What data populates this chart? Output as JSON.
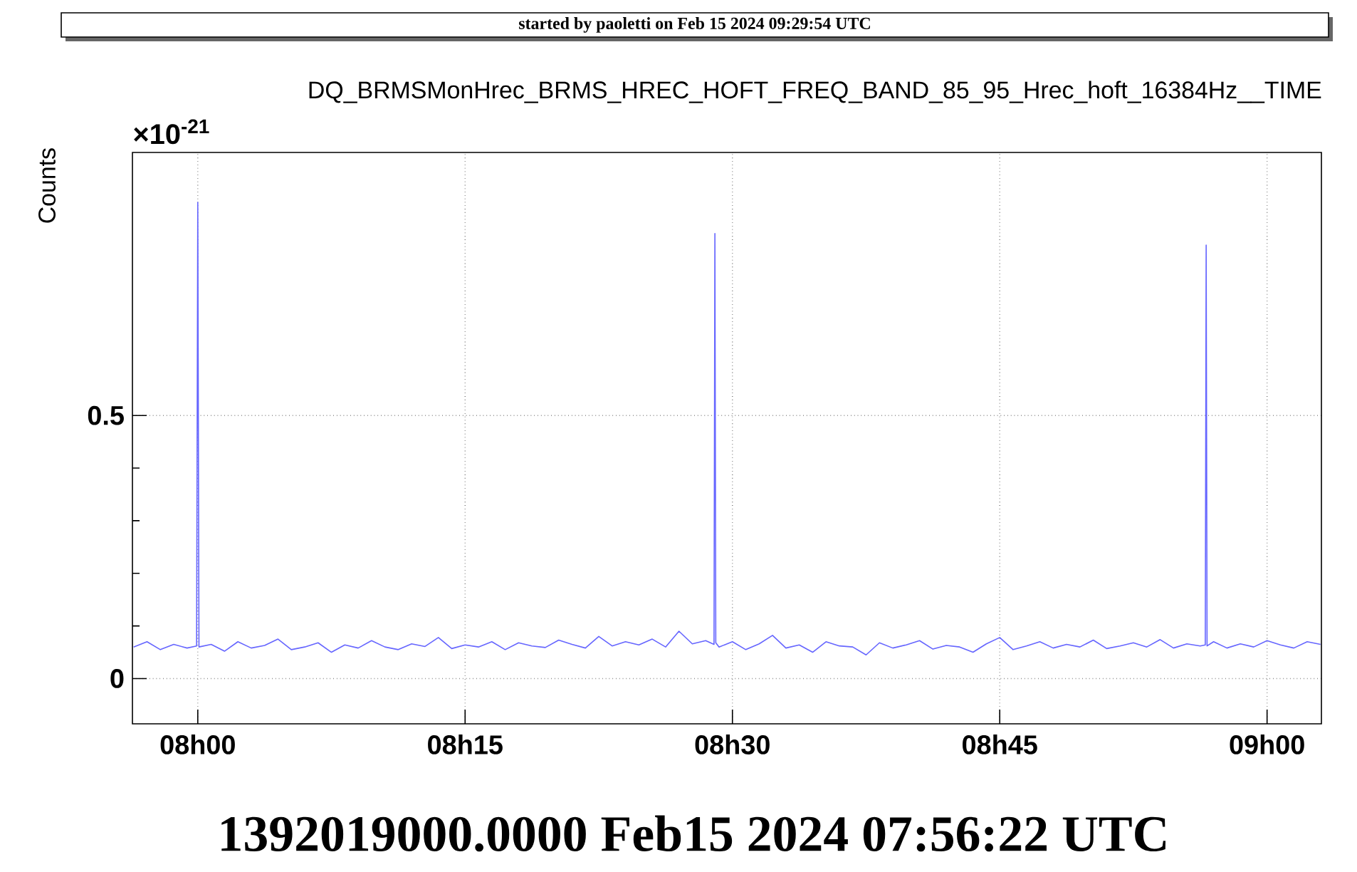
{
  "chart_data": {
    "type": "line",
    "title": "DQ_BRMSMonHrec_BRMS_HREC_HOFT_FREQ_BAND_85_95_Hrec_hoft_16384Hz__TIME",
    "ylabel": "Counts",
    "annotations": [
      "started by paoletti on Feb 15 2024 09:29:54 UTC",
      "×10$^{-21}$",
      "1392019000.0000 Feb15 2024 07:56:22 UTC"
    ],
    "xlim": [
      "2024-02-15T07:56:20",
      "2024-02-15T09:03:03"
    ],
    "ylim": [
      -0.086,
      1.0
    ],
    "xticks": [
      {
        "value": "2024-02-15T08:00",
        "label": "08h00"
      },
      {
        "value": "2024-02-15T08:15",
        "label": "08h15"
      },
      {
        "value": "2024-02-15T08:30",
        "label": "08h30"
      },
      {
        "value": "2024-02-15T08:45",
        "label": "08h45"
      },
      {
        "value": "2024-02-15T09:00",
        "label": "09h00"
      }
    ],
    "yticks": [
      0,
      0.5
    ],
    "grid": true,
    "x": [
      "2024-02-15T07:56:24",
      "2024-02-15T07:57:09",
      "2024-02-15T07:57:54",
      "2024-02-15T07:58:39",
      "2024-02-15T07:59:24",
      "2024-02-15T07:59:56",
      "2024-02-15T08:00:00",
      "2024-02-15T08:00:04",
      "2024-02-15T08:00:45",
      "2024-02-15T08:01:30",
      "2024-02-15T08:02:15",
      "2024-02-15T08:03:00",
      "2024-02-15T08:03:45",
      "2024-02-15T08:04:30",
      "2024-02-15T08:05:15",
      "2024-02-15T08:06:00",
      "2024-02-15T08:06:45",
      "2024-02-15T08:07:30",
      "2024-02-15T08:08:15",
      "2024-02-15T08:09:00",
      "2024-02-15T08:09:45",
      "2024-02-15T08:10:30",
      "2024-02-15T08:11:15",
      "2024-02-15T08:12:00",
      "2024-02-15T08:12:45",
      "2024-02-15T08:13:30",
      "2024-02-15T08:14:15",
      "2024-02-15T08:15:00",
      "2024-02-15T08:15:45",
      "2024-02-15T08:16:30",
      "2024-02-15T08:17:15",
      "2024-02-15T08:18:00",
      "2024-02-15T08:18:45",
      "2024-02-15T08:19:30",
      "2024-02-15T08:20:15",
      "2024-02-15T08:21:00",
      "2024-02-15T08:21:45",
      "2024-02-15T08:22:30",
      "2024-02-15T08:23:15",
      "2024-02-15T08:24:00",
      "2024-02-15T08:24:45",
      "2024-02-15T08:25:30",
      "2024-02-15T08:26:15",
      "2024-02-15T08:27:00",
      "2024-02-15T08:27:45",
      "2024-02-15T08:28:30",
      "2024-02-15T08:28:58",
      "2024-02-15T08:29:01",
      "2024-02-15T08:29:04",
      "2024-02-15T08:29:15",
      "2024-02-15T08:30:00",
      "2024-02-15T08:30:45",
      "2024-02-15T08:31:30",
      "2024-02-15T08:32:15",
      "2024-02-15T08:33:00",
      "2024-02-15T08:33:45",
      "2024-02-15T08:34:30",
      "2024-02-15T08:35:15",
      "2024-02-15T08:36:00",
      "2024-02-15T08:36:45",
      "2024-02-15T08:37:30",
      "2024-02-15T08:38:15",
      "2024-02-15T08:39:00",
      "2024-02-15T08:39:45",
      "2024-02-15T08:40:30",
      "2024-02-15T08:41:15",
      "2024-02-15T08:42:00",
      "2024-02-15T08:42:45",
      "2024-02-15T08:43:30",
      "2024-02-15T08:44:15",
      "2024-02-15T08:45:00",
      "2024-02-15T08:45:45",
      "2024-02-15T08:46:30",
      "2024-02-15T08:47:15",
      "2024-02-15T08:48:00",
      "2024-02-15T08:48:45",
      "2024-02-15T08:49:30",
      "2024-02-15T08:50:15",
      "2024-02-15T08:51:00",
      "2024-02-15T08:51:45",
      "2024-02-15T08:52:30",
      "2024-02-15T08:53:15",
      "2024-02-15T08:54:00",
      "2024-02-15T08:54:45",
      "2024-02-15T08:55:30",
      "2024-02-15T08:56:15",
      "2024-02-15T08:56:32",
      "2024-02-15T08:56:35",
      "2024-02-15T08:56:38",
      "2024-02-15T08:57:00",
      "2024-02-15T08:57:45",
      "2024-02-15T08:58:30",
      "2024-02-15T08:59:15",
      "2024-02-15T09:00:00",
      "2024-02-15T09:00:45",
      "2024-02-15T09:01:30",
      "2024-02-15T09:02:15",
      "2024-02-15T09:03:00"
    ],
    "series": [
      {
        "color": "#6666ff",
        "values": [
          0.06,
          0.07,
          0.055,
          0.065,
          0.058,
          0.062,
          0.905,
          0.06,
          0.065,
          0.052,
          0.07,
          0.058,
          0.063,
          0.075,
          0.055,
          0.06,
          0.068,
          0.05,
          0.064,
          0.058,
          0.072,
          0.06,
          0.055,
          0.066,
          0.061,
          0.078,
          0.057,
          0.064,
          0.06,
          0.07,
          0.055,
          0.068,
          0.062,
          0.059,
          0.073,
          0.065,
          0.058,
          0.08,
          0.062,
          0.07,
          0.064,
          0.075,
          0.06,
          0.09,
          0.066,
          0.072,
          0.065,
          0.846,
          0.068,
          0.06,
          0.07,
          0.055,
          0.066,
          0.082,
          0.058,
          0.064,
          0.05,
          0.07,
          0.062,
          0.06,
          0.045,
          0.068,
          0.058,
          0.064,
          0.072,
          0.056,
          0.063,
          0.06,
          0.05,
          0.066,
          0.078,
          0.055,
          0.062,
          0.07,
          0.058,
          0.065,
          0.06,
          0.073,
          0.057,
          0.062,
          0.068,
          0.06,
          0.074,
          0.058,
          0.066,
          0.062,
          0.064,
          0.824,
          0.062,
          0.07,
          0.058,
          0.066,
          0.06,
          0.072,
          0.064,
          0.058,
          0.07,
          0.065
        ]
      }
    ]
  }
}
